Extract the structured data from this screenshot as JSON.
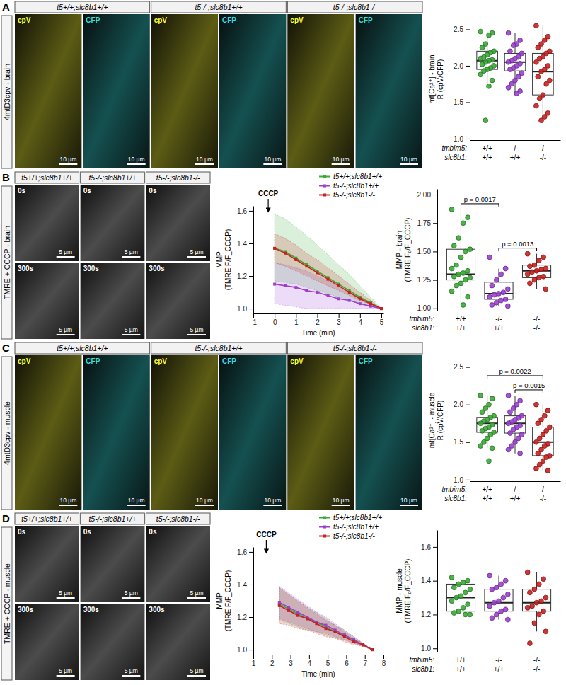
{
  "image_panels": [
    {
      "letter": "A",
      "label": "4mtD3cpv - brain",
      "type": "channels",
      "genotypes": [
        "t5+/+;slc8b1+/+",
        "t5-/-;slc8b1+/+",
        "t5-/-;slc8b1-/-"
      ],
      "frames": [
        "cpV",
        "CFP"
      ],
      "scale_bar": "10 µm"
    },
    {
      "letter": "B",
      "label": "TMRE + CCCP - brain",
      "type": "timepoints",
      "genotypes": [
        "t5+/+;slc8b1+/+",
        "t5-/-;slc8b1+/+",
        "t5-/-;slc8b1-/-"
      ],
      "frames": [
        "0s",
        "300s"
      ],
      "scale_bar": "5 µm"
    },
    {
      "letter": "C",
      "label": "4mtD3cpv - muscle",
      "type": "channels",
      "genotypes": [
        "t5+/+;slc8b1+/+",
        "t5-/-;slc8b1+/+",
        "t5-/-;slc8b1-/-"
      ],
      "frames": [
        "cpV",
        "CFP"
      ],
      "scale_bar": "10 µm"
    },
    {
      "letter": "D",
      "label": "TMRE + CCCP - muscle",
      "type": "timepoints",
      "genotypes": [
        "t5+/+;slc8b1+/+",
        "t5-/-;slc8b1+/+",
        "t5-/-;slc8b1-/-"
      ],
      "frames": [
        "0s",
        "300s"
      ],
      "scale_bar": "5 µm"
    }
  ],
  "chart_data": [
    {
      "type": "box",
      "ylabel": [
        "mt[Ca²⁺] - brain",
        "R (cpV/CFP)"
      ],
      "ylim": [
        0.98,
        2.65
      ],
      "yticks": [
        {
          "value": 1.0,
          "label": "1.0"
        },
        {
          "value": 1.5,
          "label": "1.5"
        },
        {
          "value": 2.0,
          "label": "2.0"
        },
        {
          "value": 2.5,
          "label": "2.5"
        }
      ],
      "grid": false,
      "tick_labels": "y",
      "genotype_rows": [
        {
          "label": "tmbim5:",
          "values": [
            "+/+",
            "-/-",
            "-/-"
          ]
        },
        {
          "label": "slc8b1:",
          "values": [
            "+/+",
            "+/+",
            "-/-"
          ]
        }
      ],
      "groups": [
        {
          "color": "#3aaa35",
          "box": {
            "whisker_low": 1.72,
            "q1": 1.95,
            "median": 2.07,
            "q3": 2.2,
            "whisker_high": 2.47
          },
          "points": [
            2.47,
            2.45,
            2.42,
            2.3,
            2.25,
            2.2,
            2.18,
            2.15,
            2.12,
            2.1,
            2.08,
            2.07,
            2.05,
            2.02,
            2.0,
            1.97,
            1.95,
            1.93,
            1.88,
            1.8,
            1.72,
            1.25
          ]
        },
        {
          "color": "#9b3fd0",
          "box": {
            "whisker_low": 1.62,
            "q1": 1.93,
            "median": 2.05,
            "q3": 2.17,
            "whisker_high": 2.45
          },
          "points": [
            2.45,
            2.35,
            2.3,
            2.28,
            2.2,
            2.17,
            2.12,
            2.1,
            2.07,
            2.05,
            2.03,
            2.0,
            1.97,
            1.95,
            1.9,
            1.85,
            1.8,
            1.75,
            1.7,
            1.65,
            1.62
          ]
        },
        {
          "color": "#c8201e",
          "box": {
            "whisker_low": 1.25,
            "q1": 1.6,
            "median": 1.92,
            "q3": 2.17,
            "whisker_high": 2.55
          },
          "points": [
            2.55,
            2.4,
            2.35,
            2.3,
            2.25,
            2.2,
            2.17,
            2.12,
            2.1,
            2.05,
            2.0,
            1.95,
            1.92,
            1.85,
            1.8,
            1.75,
            1.6,
            1.55,
            1.45,
            1.35,
            1.3,
            1.25
          ]
        }
      ],
      "comparisons": []
    },
    {
      "type": "line",
      "ylabel": [
        "MMP",
        "(TMRE F/F_CCCP)"
      ],
      "xlabel": "Time (min)",
      "xlim": [
        -1,
        5.1
      ],
      "xticks": [
        -1,
        0,
        1,
        2,
        3,
        4,
        5
      ],
      "ylim": [
        0.97,
        1.63
      ],
      "yticks": [
        {
          "value": 1.0,
          "label": "1.0"
        },
        {
          "value": 1.2,
          "label": "1.2"
        },
        {
          "value": 1.4,
          "label": "1.4"
        },
        {
          "value": 1.6,
          "label": "1.6"
        }
      ],
      "grid": false,
      "legend": "top-right",
      "marker": "square",
      "annotations": [
        {
          "text": "CCCP",
          "x": -0.3
        }
      ],
      "x": [
        0,
        0.5,
        1,
        1.5,
        2,
        2.5,
        3,
        3.5,
        4,
        4.5,
        5
      ],
      "series": [
        {
          "name": "t5+/+;slc8b1+/+",
          "color": "#3aaa35",
          "values": [
            1.37,
            1.35,
            1.31,
            1.27,
            1.23,
            1.19,
            1.15,
            1.11,
            1.07,
            1.035,
            1.0
          ],
          "lower": [
            1.17,
            1.16,
            1.15,
            1.13,
            1.11,
            1.09,
            1.07,
            1.05,
            1.03,
            1.015,
            1.0
          ],
          "upper": [
            1.58,
            1.55,
            1.5,
            1.45,
            1.39,
            1.33,
            1.27,
            1.21,
            1.14,
            1.07,
            1.0
          ]
        },
        {
          "name": "t5-/-;slc8b1+/+",
          "color": "#9b3fd0",
          "values": [
            1.15,
            1.14,
            1.13,
            1.11,
            1.1,
            1.08,
            1.06,
            1.05,
            1.03,
            1.015,
            1.0
          ],
          "lower": [
            1.03,
            1.02,
            1.01,
            1.0,
            1.0,
            1.0,
            1.0,
            1.0,
            1.0,
            1.0,
            1.0
          ],
          "upper": [
            1.28,
            1.27,
            1.25,
            1.23,
            1.2,
            1.17,
            1.14,
            1.1,
            1.07,
            1.035,
            1.0
          ]
        },
        {
          "name": "t5-/-;slc8b1-/-",
          "color": "#c8201e",
          "values": [
            1.37,
            1.34,
            1.3,
            1.26,
            1.22,
            1.18,
            1.14,
            1.1,
            1.06,
            1.03,
            1.0
          ],
          "lower": [
            1.28,
            1.26,
            1.23,
            1.2,
            1.17,
            1.14,
            1.11,
            1.08,
            1.05,
            1.025,
            1.0
          ],
          "upper": [
            1.46,
            1.43,
            1.39,
            1.34,
            1.3,
            1.25,
            1.2,
            1.15,
            1.1,
            1.05,
            1.0
          ]
        }
      ]
    },
    {
      "type": "box",
      "ylabel": [
        "MMP - brain",
        "(TMRE F₀/F_CCCP)"
      ],
      "ylim": [
        0.98,
        2.05
      ],
      "yticks": [
        {
          "value": 1.0,
          "label": "1.00"
        },
        {
          "value": 1.25,
          "label": "1.25"
        },
        {
          "value": 1.5,
          "label": "1.50"
        },
        {
          "value": 1.75,
          "label": "1.75"
        },
        {
          "value": 2.0,
          "label": "2.00"
        }
      ],
      "grid": false,
      "tick_labels": "y",
      "genotype_rows": [
        {
          "label": "tmbim5:",
          "values": [
            "+/+",
            "-/-",
            "-/-"
          ]
        },
        {
          "label": "slc8b1:",
          "values": [
            "+/+",
            "+/+",
            "-/-"
          ]
        }
      ],
      "groups": [
        {
          "color": "#3aaa35",
          "box": {
            "whisker_low": 1.03,
            "q1": 1.25,
            "median": 1.3,
            "q3": 1.52,
            "whisker_high": 1.87
          },
          "points": [
            1.87,
            1.8,
            1.75,
            1.62,
            1.55,
            1.52,
            1.5,
            1.45,
            1.38,
            1.35,
            1.33,
            1.31,
            1.3,
            1.28,
            1.27,
            1.25,
            1.22,
            1.2,
            1.15,
            1.1,
            1.03
          ]
        },
        {
          "color": "#9b3fd0",
          "box": {
            "whisker_low": 1.02,
            "q1": 1.08,
            "median": 1.13,
            "q3": 1.23,
            "whisker_high": 1.35
          },
          "points": [
            1.45,
            1.35,
            1.3,
            1.25,
            1.2,
            1.17,
            1.14,
            1.13,
            1.12,
            1.1,
            1.08,
            1.07,
            1.05,
            1.03,
            1.02
          ]
        },
        {
          "color": "#c8201e",
          "box": {
            "whisker_low": 1.17,
            "q1": 1.27,
            "median": 1.33,
            "q3": 1.38,
            "whisker_high": 1.48
          },
          "points": [
            1.48,
            1.45,
            1.42,
            1.38,
            1.37,
            1.35,
            1.34,
            1.33,
            1.32,
            1.3,
            1.28,
            1.27,
            1.25,
            1.22,
            1.17
          ]
        }
      ],
      "comparisons": [
        {
          "groups": [
            0,
            1
          ],
          "label": "p = 0.0017"
        },
        {
          "groups": [
            1,
            2
          ],
          "label": "p = 0.0013"
        }
      ]
    },
    {
      "type": "box",
      "ylabel": [
        "mt[Ca²⁺] - muscle",
        "R (cpV/CFP)"
      ],
      "ylim": [
        0.98,
        2.6
      ],
      "yticks": [
        {
          "value": 1.0,
          "label": "1.0"
        },
        {
          "value": 1.5,
          "label": "1.5"
        },
        {
          "value": 2.0,
          "label": "2.0"
        },
        {
          "value": 2.5,
          "label": "2.5"
        }
      ],
      "grid": false,
      "tick_labels": "y",
      "genotype_rows": [
        {
          "label": "tmbim5:",
          "values": [
            "+/+",
            "-/-",
            "-/-"
          ]
        },
        {
          "label": "slc8b1:",
          "values": [
            "+/+",
            "+/+",
            "-/-"
          ]
        }
      ],
      "groups": [
        {
          "color": "#3aaa35",
          "box": {
            "whisker_low": 1.42,
            "q1": 1.63,
            "median": 1.75,
            "q3": 1.83,
            "whisker_high": 2.12
          },
          "points": [
            2.12,
            2.08,
            2.0,
            1.95,
            1.9,
            1.85,
            1.83,
            1.8,
            1.78,
            1.75,
            1.73,
            1.7,
            1.68,
            1.65,
            1.63,
            1.6,
            1.55,
            1.5,
            1.45,
            1.42,
            1.25
          ]
        },
        {
          "color": "#9b3fd0",
          "box": {
            "whisker_low": 1.35,
            "q1": 1.62,
            "median": 1.75,
            "q3": 1.85,
            "whisker_high": 2.12
          },
          "points": [
            2.12,
            2.05,
            2.0,
            1.95,
            1.9,
            1.85,
            1.82,
            1.8,
            1.77,
            1.75,
            1.72,
            1.7,
            1.67,
            1.62,
            1.6,
            1.55,
            1.5,
            1.45,
            1.4,
            1.35
          ]
        },
        {
          "color": "#c8201e",
          "box": {
            "whisker_low": 1.12,
            "q1": 1.32,
            "median": 1.5,
            "q3": 1.7,
            "whisker_high": 2.0
          },
          "points": [
            2.0,
            1.92,
            1.85,
            1.8,
            1.75,
            1.7,
            1.65,
            1.6,
            1.55,
            1.5,
            1.48,
            1.45,
            1.4,
            1.35,
            1.32,
            1.3,
            1.25,
            1.2,
            1.15,
            1.12
          ]
        }
      ],
      "comparisons": [
        {
          "groups": [
            1,
            2
          ],
          "label": "p = 0.0015"
        },
        {
          "groups": [
            0,
            2
          ],
          "label": "p = 0.0022"
        }
      ]
    },
    {
      "type": "line",
      "ylabel": [
        "MMP",
        "(TMRE F/F_CCCP)"
      ],
      "xlabel": "Time (min)",
      "xlim": [
        1,
        8
      ],
      "xticks": [
        1,
        2,
        3,
        4,
        5,
        6,
        7,
        8
      ],
      "ylim": [
        0.97,
        1.63
      ],
      "yticks": [
        {
          "value": 1.0,
          "label": "1.0"
        },
        {
          "value": 1.2,
          "label": "1.2"
        },
        {
          "value": 1.4,
          "label": "1.4"
        },
        {
          "value": 1.6,
          "label": "1.6"
        }
      ],
      "grid": false,
      "legend": "top-right",
      "marker": "square",
      "annotations": [
        {
          "text": "CCCP",
          "x": 1.7
        }
      ],
      "x": [
        2.4,
        2.9,
        3.4,
        3.9,
        4.4,
        4.9,
        5.4,
        5.9,
        6.4,
        6.9,
        7.4
      ],
      "series": [
        {
          "name": "t5+/+;slc8b1+/+",
          "color": "#3aaa35",
          "values": [
            1.28,
            1.25,
            1.22,
            1.19,
            1.17,
            1.14,
            1.11,
            1.09,
            1.06,
            1.03,
            1.0
          ],
          "lower": [
            1.18,
            1.16,
            1.14,
            1.12,
            1.11,
            1.09,
            1.07,
            1.06,
            1.04,
            1.02,
            1.0
          ],
          "upper": [
            1.38,
            1.34,
            1.3,
            1.26,
            1.23,
            1.19,
            1.15,
            1.12,
            1.08,
            1.04,
            1.0
          ]
        },
        {
          "name": "t5-/-;slc8b1+/+",
          "color": "#9b3fd0",
          "values": [
            1.29,
            1.26,
            1.23,
            1.2,
            1.17,
            1.15,
            1.12,
            1.09,
            1.06,
            1.03,
            1.0
          ],
          "lower": [
            1.19,
            1.17,
            1.15,
            1.13,
            1.11,
            1.1,
            1.08,
            1.06,
            1.04,
            1.02,
            1.0
          ],
          "upper": [
            1.39,
            1.35,
            1.31,
            1.27,
            1.23,
            1.2,
            1.16,
            1.12,
            1.08,
            1.04,
            1.0
          ]
        },
        {
          "name": "t5-/-;slc8b1-/-",
          "color": "#c8201e",
          "values": [
            1.27,
            1.24,
            1.21,
            1.19,
            1.16,
            1.13,
            1.11,
            1.08,
            1.05,
            1.03,
            1.0
          ],
          "lower": [
            1.16,
            1.15,
            1.13,
            1.12,
            1.1,
            1.08,
            1.07,
            1.05,
            1.03,
            1.02,
            1.0
          ],
          "upper": [
            1.38,
            1.34,
            1.3,
            1.26,
            1.22,
            1.18,
            1.15,
            1.11,
            1.07,
            1.04,
            1.0
          ]
        }
      ]
    },
    {
      "type": "box",
      "ylabel": [
        "MMP - muscle",
        "(TMRE F₀/F_CCCP)"
      ],
      "ylim": [
        0.98,
        1.7
      ],
      "yticks": [
        {
          "value": 1.0,
          "label": "1.0"
        },
        {
          "value": 1.2,
          "label": "1.2"
        },
        {
          "value": 1.4,
          "label": "1.4"
        },
        {
          "value": 1.6,
          "label": "1.6"
        }
      ],
      "grid": false,
      "tick_labels": "y",
      "genotype_rows": [
        {
          "label": "tmbim5:",
          "values": [
            "+/+",
            "-/-",
            "-/-"
          ]
        },
        {
          "label": "slc8b1:",
          "values": [
            "+/+",
            "+/+",
            "-/-"
          ]
        }
      ],
      "groups": [
        {
          "color": "#3aaa35",
          "box": {
            "whisker_low": 1.2,
            "q1": 1.22,
            "median": 1.3,
            "q3": 1.38,
            "whisker_high": 1.42
          },
          "points": [
            1.42,
            1.4,
            1.39,
            1.38,
            1.36,
            1.35,
            1.33,
            1.31,
            1.3,
            1.28,
            1.26,
            1.24,
            1.22,
            1.21,
            1.2,
            1.2
          ]
        },
        {
          "color": "#9b3fd0",
          "box": {
            "whisker_low": 1.17,
            "q1": 1.22,
            "median": 1.27,
            "q3": 1.35,
            "whisker_high": 1.43
          },
          "points": [
            1.43,
            1.4,
            1.38,
            1.36,
            1.35,
            1.32,
            1.3,
            1.28,
            1.27,
            1.25,
            1.23,
            1.22,
            1.2,
            1.18,
            1.17
          ]
        },
        {
          "color": "#c8201e",
          "box": {
            "whisker_low": 1.1,
            "q1": 1.22,
            "median": 1.27,
            "q3": 1.35,
            "whisker_high": 1.45
          },
          "points": [
            1.45,
            1.41,
            1.38,
            1.35,
            1.33,
            1.3,
            1.28,
            1.27,
            1.25,
            1.24,
            1.22,
            1.2,
            1.15,
            1.03,
            1.1
          ]
        }
      ],
      "comparisons": []
    }
  ]
}
